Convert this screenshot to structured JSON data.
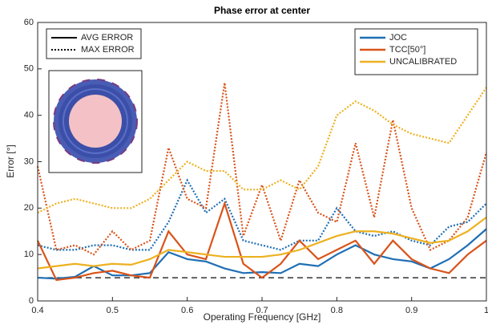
{
  "chart_data": {
    "type": "line",
    "title": "Phase error at center",
    "x_label": "Operating Frequency [GHz]",
    "y_label": "Error [°]",
    "x": [
      0.4,
      0.425,
      0.45,
      0.475,
      0.5,
      0.525,
      0.55,
      0.575,
      0.6,
      0.625,
      0.65,
      0.675,
      0.7,
      0.725,
      0.75,
      0.775,
      0.8,
      0.825,
      0.85,
      0.875,
      0.9,
      0.925,
      0.95,
      0.975,
      1
    ],
    "series": [
      {
        "name": "JOC",
        "color": "#1f6fb4",
        "values": [
          5,
          4.8,
          5.2,
          7.5,
          5.5,
          5.5,
          6,
          10.5,
          9,
          8.5,
          7,
          6,
          6.2,
          6,
          8,
          7.5,
          10,
          12,
          10,
          9,
          8.5,
          7,
          9,
          12,
          15.5
        ],
        "max_values": [
          12,
          11,
          11,
          12,
          12,
          11,
          11,
          17,
          26,
          19,
          22,
          13,
          12,
          11,
          13,
          13,
          20,
          15,
          14,
          15,
          13,
          12,
          16,
          17,
          21
        ]
      },
      {
        "name": "TCC[50°]",
        "color": "#d95319",
        "values": [
          13,
          4.5,
          5,
          6,
          6.5,
          5.5,
          5,
          15,
          10,
          9,
          21,
          8,
          5,
          8,
          13,
          9,
          11,
          13,
          8,
          13,
          9,
          7,
          6,
          10,
          13
        ],
        "max_values": [
          29,
          11,
          12,
          10,
          15,
          11,
          13,
          33,
          22,
          20,
          47,
          14,
          25,
          13,
          26,
          19,
          17,
          34,
          18,
          39,
          20,
          11,
          13,
          18,
          32
        ]
      },
      {
        "name": "UNCALIBRATED",
        "color": "#edb120",
        "values": [
          7,
          7.5,
          8,
          7.5,
          8,
          7.8,
          9,
          11,
          10.5,
          10,
          9.5,
          9.5,
          9.5,
          10,
          11,
          12.5,
          14,
          15,
          15,
          14.5,
          13.5,
          12.5,
          13,
          15,
          18
        ],
        "max_values": [
          19,
          21,
          22,
          21,
          20,
          20,
          22,
          26,
          30,
          28,
          28,
          24,
          24,
          26,
          24,
          29,
          40,
          43,
          41,
          38,
          36,
          35,
          34,
          40,
          46
        ]
      }
    ],
    "line_styles": [
      {
        "label": "AVG ERROR",
        "dash": "solid"
      },
      {
        "label": "MAX ERROR",
        "dash": "dotted"
      }
    ],
    "reference_line": 5,
    "xlim": [
      0.4,
      1
    ],
    "xticks": [
      0.4,
      0.5,
      0.6,
      0.7,
      0.8,
      0.9,
      1
    ],
    "ylim": [
      0,
      60
    ],
    "yticks": [
      0,
      10,
      20,
      30,
      40,
      50,
      60
    ],
    "legend": "top-right",
    "style_legend": "top-left"
  }
}
